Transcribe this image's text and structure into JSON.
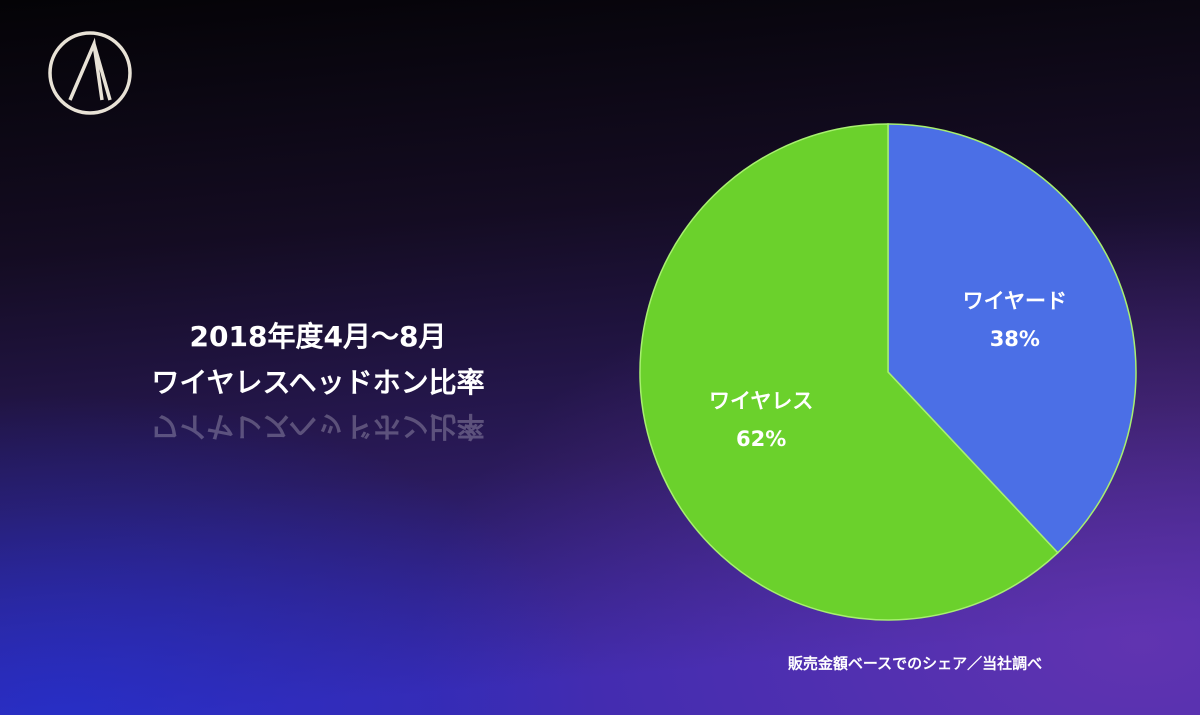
{
  "chart_data": {
    "type": "pie",
    "title": "2018年度4月〜8月",
    "subtitle": "ワイヤレスヘッドホン比率",
    "categories": [
      "ワイヤード",
      "ワイヤレス"
    ],
    "values": [
      38,
      62
    ],
    "value_labels": [
      "38%",
      "62%"
    ],
    "colors": [
      "#4b6fe6",
      "#6bd12c"
    ],
    "note": "販売金額ベースでのシェア／当社調べ"
  }
}
